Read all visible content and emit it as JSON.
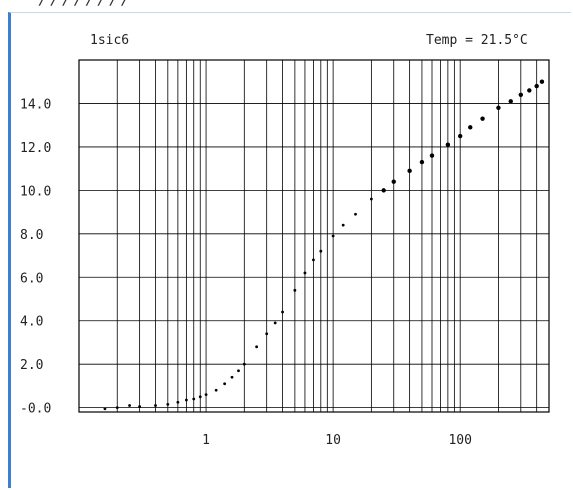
{
  "chart_data": {
    "type": "scatter",
    "title": "1sic6",
    "annotation": "Temp = 21.5°C",
    "x_scale": "log",
    "xlim": [
      0.1,
      500
    ],
    "ylim": [
      -0.2,
      16
    ],
    "x_tick_labels": [
      "1",
      "10",
      "100"
    ],
    "y_tick_labels": [
      "14.0",
      "12.0",
      "10.0",
      "8.0",
      "6.0",
      "4.0",
      "2.0",
      "-0.0"
    ],
    "grid": true,
    "series": [
      {
        "x": [
          0.16,
          0.2,
          0.25,
          0.3,
          0.4,
          0.5,
          0.6,
          0.7,
          0.8,
          0.9,
          1.0,
          1.2,
          1.4,
          1.6,
          1.8,
          2.0,
          2.5,
          3.0,
          3.5,
          4.0,
          5.0,
          6.0,
          7.0,
          8.0,
          10,
          12,
          15,
          20,
          25,
          30,
          40,
          50,
          60,
          80,
          100,
          120,
          150,
          200,
          250,
          300,
          350,
          400,
          440
        ],
        "y": [
          -0.05,
          0.0,
          0.1,
          0.05,
          0.1,
          0.15,
          0.25,
          0.35,
          0.4,
          0.5,
          0.6,
          0.8,
          1.1,
          1.4,
          1.7,
          2.0,
          2.8,
          3.4,
          3.9,
          4.4,
          5.4,
          6.2,
          6.8,
          7.2,
          7.9,
          8.4,
          8.9,
          9.6,
          10.0,
          10.4,
          10.9,
          11.3,
          11.6,
          12.1,
          12.5,
          12.9,
          13.3,
          13.8,
          14.1,
          14.4,
          14.6,
          14.8,
          15.0
        ]
      }
    ]
  },
  "top_crop_text": "/ / / / / / / /"
}
